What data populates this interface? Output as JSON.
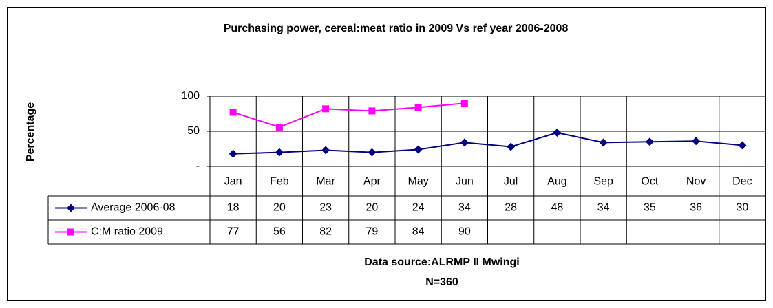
{
  "chart_data": {
    "type": "line",
    "title": "Purchasing power, cereal:meat ratio in 2009 Vs ref year 2006-2008",
    "y_label": "Percentage",
    "annotations": [
      "Data source:ALRMP II Mwingi",
      "N=360"
    ],
    "categories": [
      "Jan",
      "Feb",
      "Mar",
      "Apr",
      "May",
      "Jun",
      "Jul",
      "Aug",
      "Sep",
      "Oct",
      "Nov",
      "Dec"
    ],
    "series": [
      {
        "name": "Average 2006-08",
        "color": "#000080",
        "marker": "diamond",
        "values": [
          18,
          20,
          23,
          20,
          24,
          34,
          28,
          48,
          34,
          35,
          36,
          30
        ]
      },
      {
        "name": "C:M ratio 2009",
        "color": "#ff00ff",
        "marker": "square",
        "values": [
          77,
          56,
          82,
          79,
          84,
          90,
          null,
          null,
          null,
          null,
          null,
          null
        ]
      }
    ],
    "ylim": [
      0,
      100
    ],
    "yticks": [
      {
        "value": 0,
        "label": "-"
      },
      50,
      100
    ],
    "grid": true
  }
}
